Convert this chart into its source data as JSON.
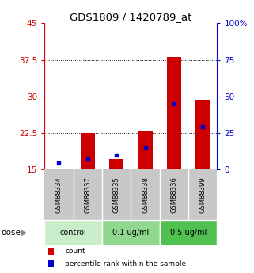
{
  "title": "GDS1809 / 1420789_at",
  "samples": [
    "GSM88334",
    "GSM88337",
    "GSM88335",
    "GSM88338",
    "GSM88336",
    "GSM88399"
  ],
  "count_values": [
    15.2,
    22.5,
    17.2,
    23.0,
    38.0,
    29.2
  ],
  "percentile_values_left_scale": [
    16.3,
    17.2,
    18.0,
    19.5,
    28.5,
    23.8
  ],
  "count_base": 15,
  "ylim_left": [
    15,
    45
  ],
  "ylim_right": [
    0,
    100
  ],
  "yticks_left": [
    15,
    22.5,
    30,
    37.5,
    45
  ],
  "yticks_right": [
    0,
    25,
    50,
    75,
    100
  ],
  "ytick_labels_left": [
    "15",
    "22.5",
    "30",
    "37.5",
    "45"
  ],
  "ytick_labels_right": [
    "0",
    "25",
    "50",
    "75",
    "100%"
  ],
  "dose_groups": [
    {
      "label": "control",
      "indices": [
        0,
        1
      ],
      "color": "#c8edc8"
    },
    {
      "label": "0.1 ug/ml",
      "indices": [
        2,
        3
      ],
      "color": "#90d890"
    },
    {
      "label": "0.5 ug/ml",
      "indices": [
        4,
        5
      ],
      "color": "#50c050"
    }
  ],
  "bar_color": "#cc0000",
  "percentile_color": "#0000cc",
  "bar_width": 0.5,
  "gridline_color": "#000000",
  "left_axis_color": "#cc0000",
  "right_axis_color": "#0000cc",
  "label_count": "count",
  "label_percentile": "percentile rank within the sample",
  "dose_label": "dose",
  "background_color": "#ffffff",
  "sample_box_color": "#c8c8c8"
}
